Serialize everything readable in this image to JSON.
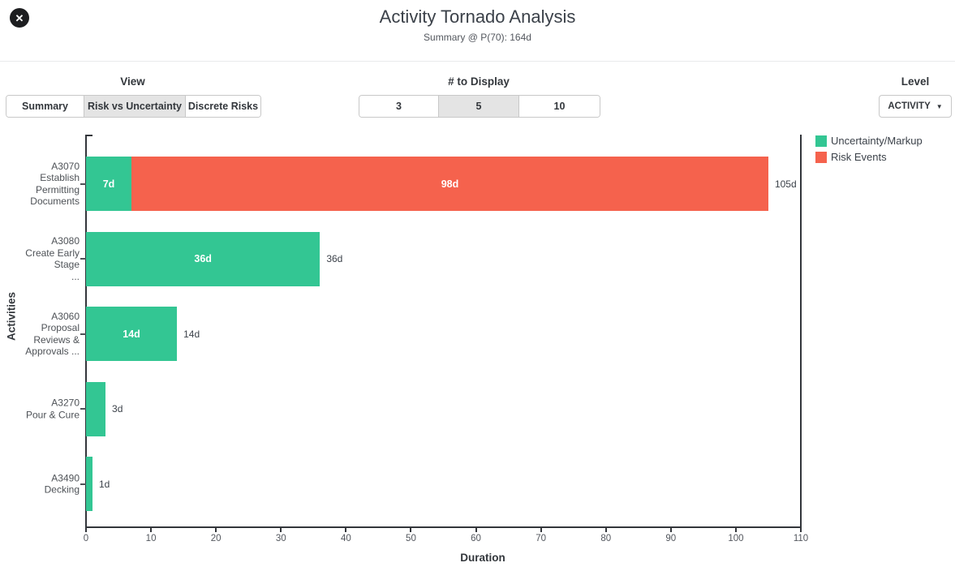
{
  "header": {
    "title": "Activity Tornado Analysis",
    "subtitle": "Summary @ P(70): 164d",
    "close_glyph": "✕"
  },
  "controls": {
    "view": {
      "label": "View",
      "options": [
        {
          "label": "Summary",
          "selected": false
        },
        {
          "label": "Risk vs Uncertainty",
          "selected": true
        },
        {
          "label": "Discrete Risks",
          "selected": false
        }
      ]
    },
    "display_count": {
      "label": "# to Display",
      "options": [
        {
          "label": "3",
          "selected": false
        },
        {
          "label": "5",
          "selected": true
        },
        {
          "label": "10",
          "selected": false
        }
      ]
    },
    "level": {
      "label": "Level",
      "value": "ACTIVITY",
      "caret": "▼"
    }
  },
  "chart_data": {
    "type": "bar",
    "orientation": "horizontal",
    "stacked": true,
    "title": "Activity Tornado Analysis",
    "xlabel": "Duration",
    "ylabel": "Activities",
    "xlim": [
      0,
      110
    ],
    "xticks": [
      0,
      10,
      20,
      30,
      40,
      50,
      60,
      70,
      80,
      90,
      100,
      110
    ],
    "grid": false,
    "legend_position": "top-right",
    "legend": [
      {
        "name": "Uncertainty/Markup",
        "color": "#33c693"
      },
      {
        "name": "Risk Events",
        "color": "#f5624d"
      }
    ],
    "bars": [
      {
        "category": "A3070 Establish Permitting Documents",
        "label_lines": [
          "A3070",
          "Establish",
          "Permitting",
          "Documents"
        ],
        "segments": [
          {
            "series": "Uncertainty/Markup",
            "value": 7,
            "label": "7d"
          },
          {
            "series": "Risk Events",
            "value": 98,
            "label": "98d"
          }
        ],
        "total": 105,
        "total_label": "105d"
      },
      {
        "category": "A3080 Create Early Stage ...",
        "label_lines": [
          "A3080",
          "Create Early",
          "Stage",
          "..."
        ],
        "segments": [
          {
            "series": "Uncertainty/Markup",
            "value": 36,
            "label": "36d"
          }
        ],
        "total": 36,
        "total_label": "36d"
      },
      {
        "category": "A3060 Proposal Reviews & Approvals ...",
        "label_lines": [
          "A3060",
          "Proposal",
          "Reviews &",
          "Approvals ..."
        ],
        "segments": [
          {
            "series": "Uncertainty/Markup",
            "value": 14,
            "label": "14d"
          }
        ],
        "total": 14,
        "total_label": "14d"
      },
      {
        "category": "A3270 Pour & Cure",
        "label_lines": [
          "A3270",
          "Pour & Cure"
        ],
        "segments": [
          {
            "series": "Uncertainty/Markup",
            "value": 3,
            "label": ""
          }
        ],
        "total": 3,
        "total_label": "3d"
      },
      {
        "category": "A3490 Decking",
        "label_lines": [
          "A3490",
          "Decking"
        ],
        "segments": [
          {
            "series": "Uncertainty/Markup",
            "value": 1,
            "label": ""
          }
        ],
        "total": 1,
        "total_label": "1d"
      }
    ]
  }
}
